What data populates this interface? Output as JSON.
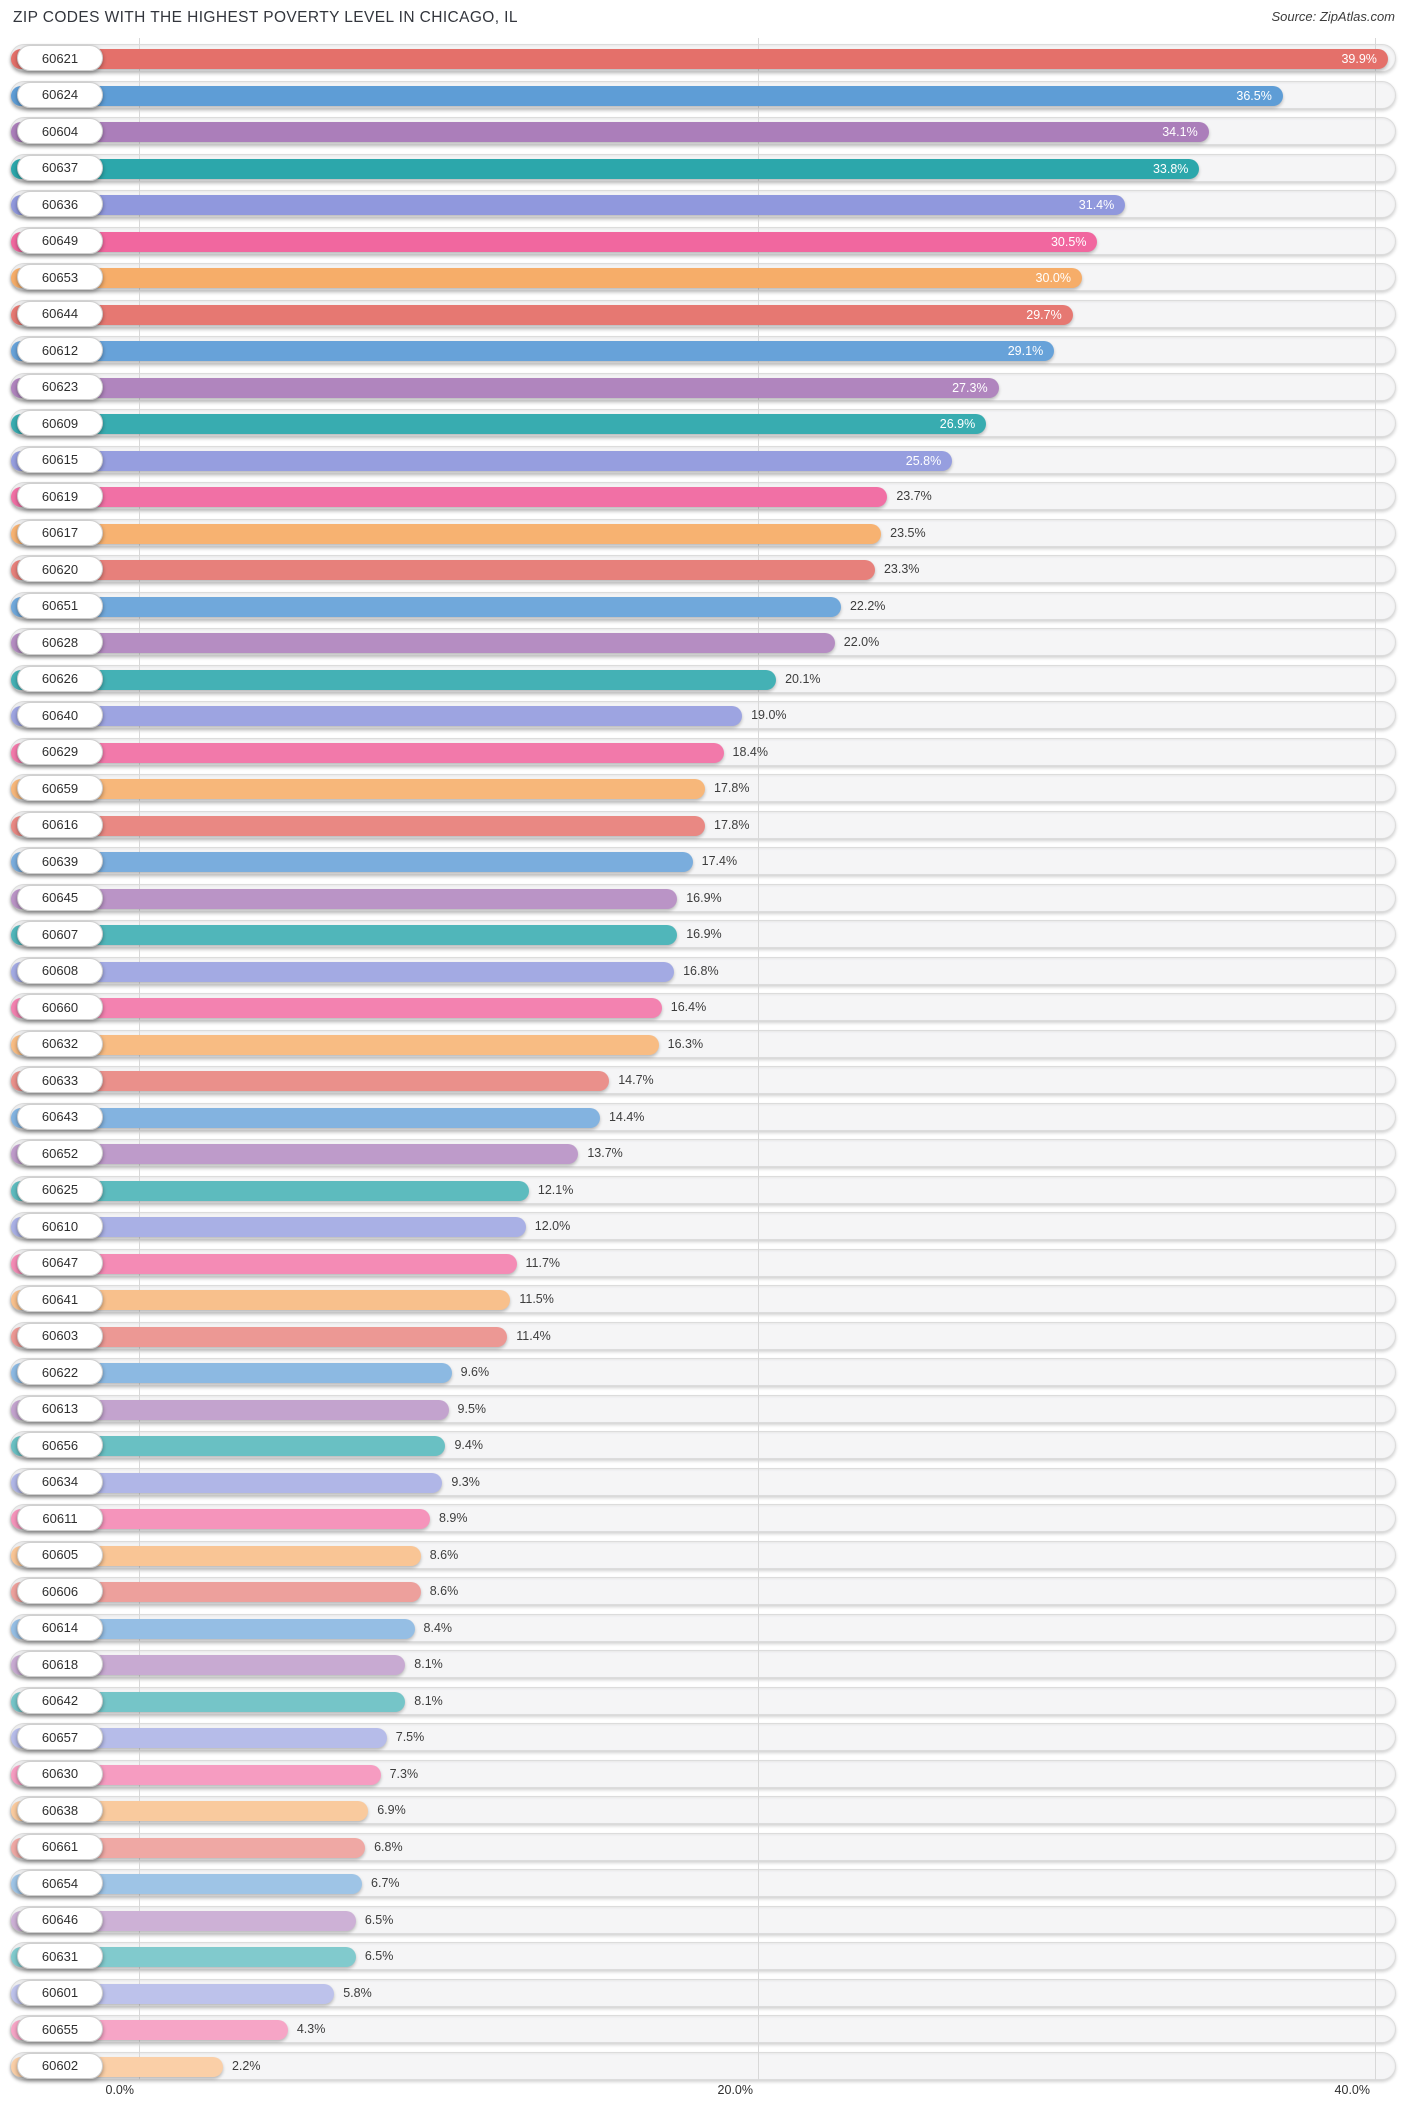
{
  "header": {
    "title": "ZIP CODES WITH THE HIGHEST POVERTY LEVEL IN CHICAGO, IL",
    "source": "Source: ZipAtlas.com"
  },
  "chart_data": {
    "type": "bar",
    "orientation": "horizontal",
    "title": "ZIP CODES WITH THE HIGHEST POVERTY LEVEL IN CHICAGO, IL",
    "source": "Source: ZipAtlas.com",
    "xlabel": "",
    "ylabel": "",
    "xlim": [
      0,
      40
    ],
    "grid": true,
    "legend": false,
    "x_axis_ticks": [
      "0.0%",
      "20.0%",
      "40.0%"
    ],
    "x_axis_tick_values": [
      0,
      20,
      40
    ],
    "value_suffix": "%",
    "categories": [
      "60621",
      "60624",
      "60604",
      "60637",
      "60636",
      "60649",
      "60653",
      "60644",
      "60612",
      "60623",
      "60609",
      "60615",
      "60619",
      "60617",
      "60620",
      "60651",
      "60628",
      "60626",
      "60640",
      "60629",
      "60659",
      "60616",
      "60639",
      "60645",
      "60607",
      "60608",
      "60660",
      "60632",
      "60633",
      "60643",
      "60652",
      "60625",
      "60610",
      "60647",
      "60641",
      "60603",
      "60622",
      "60613",
      "60656",
      "60634",
      "60611",
      "60605",
      "60606",
      "60614",
      "60618",
      "60642",
      "60657",
      "60630",
      "60638",
      "60661",
      "60654",
      "60646",
      "60631",
      "60601",
      "60655",
      "60602"
    ],
    "values": [
      39.9,
      36.5,
      34.1,
      33.8,
      31.4,
      30.5,
      30.0,
      29.7,
      29.1,
      27.3,
      26.9,
      25.8,
      23.7,
      23.5,
      23.3,
      22.2,
      22.0,
      20.1,
      19.0,
      18.4,
      17.8,
      17.8,
      17.4,
      16.9,
      16.9,
      16.8,
      16.4,
      16.3,
      14.7,
      14.4,
      13.7,
      12.1,
      12.0,
      11.7,
      11.5,
      11.4,
      9.6,
      9.5,
      9.4,
      9.3,
      8.9,
      8.6,
      8.6,
      8.4,
      8.1,
      8.1,
      7.5,
      7.3,
      6.9,
      6.8,
      6.7,
      6.5,
      6.5,
      5.8,
      4.3,
      2.2
    ],
    "palette": [
      "#E4706A",
      "#5D9CD6",
      "#AA7CB9",
      "#27A5A9",
      "#8C95DC",
      "#F0619B",
      "#F6A961"
    ],
    "track_color": "#f5f5f6",
    "gridline_color": "#d8d8d8",
    "inside_label_color": "#ffffff",
    "outside_label_color": "#3d3d3d"
  }
}
